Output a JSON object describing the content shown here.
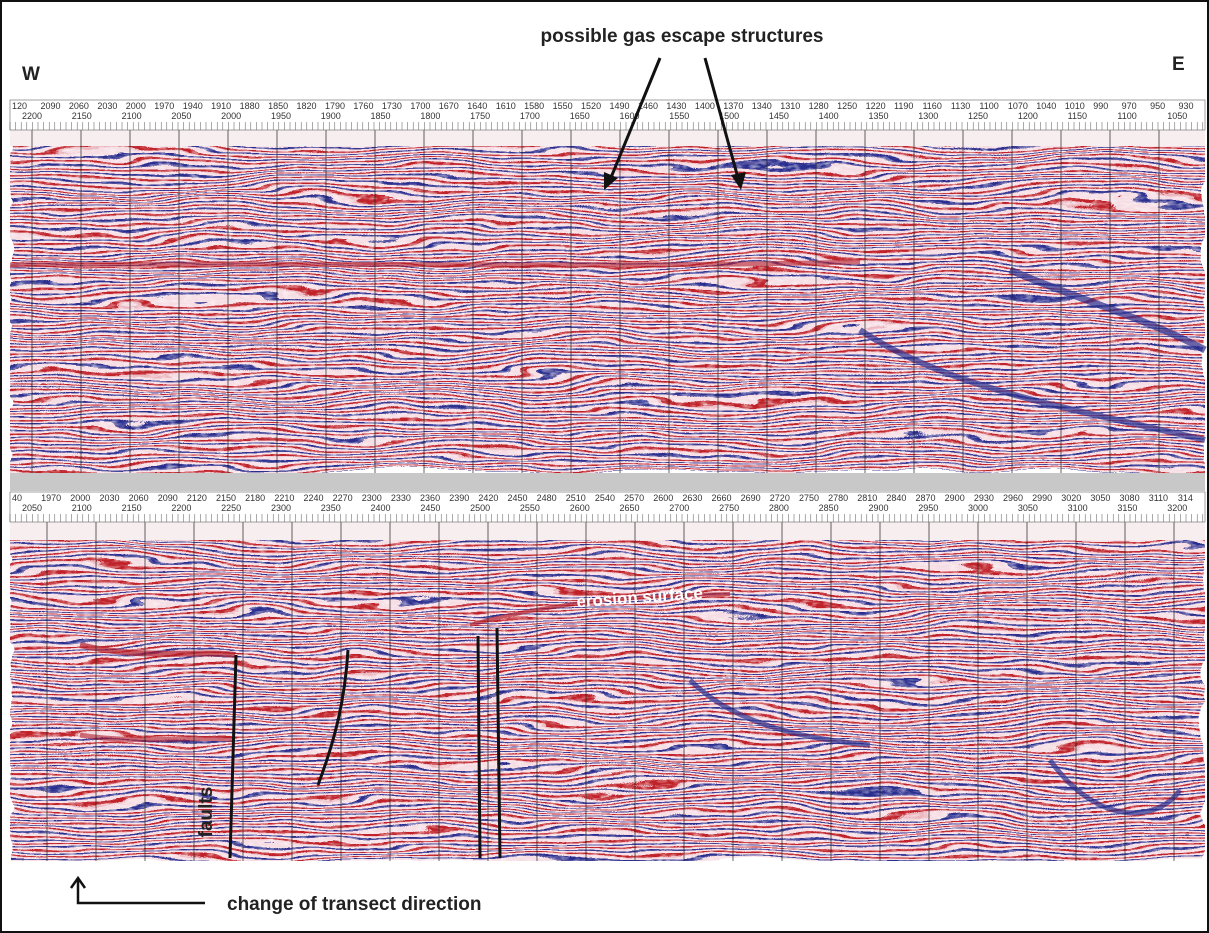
{
  "annotations": {
    "west": "W",
    "east": "E",
    "gas": "possible gas escape structures",
    "erosion": "erosion surface",
    "faults": "faults",
    "direction": "change of transect direction"
  },
  "scales": {
    "top_panel": {
      "upper": [
        "120",
        "2090",
        "2060",
        "2030",
        "2000",
        "1970",
        "1940",
        "1910",
        "1880",
        "1850",
        "1820",
        "1790",
        "1760",
        "1730",
        "1700",
        "1670",
        "1640",
        "1610",
        "1580",
        "1550",
        "1520",
        "1490",
        "1460",
        "1430",
        "1400",
        "1370",
        "1340",
        "1310",
        "1280",
        "1250",
        "1220",
        "1190",
        "1160",
        "1130",
        "1100",
        "1070",
        "1040",
        "1010",
        "990",
        "970",
        "950",
        "930"
      ],
      "lower": [
        "2200",
        "2150",
        "2100",
        "2050",
        "2000",
        "1950",
        "1900",
        "1850",
        "1800",
        "1750",
        "1700",
        "1650",
        "1600",
        "1550",
        "1500",
        "1450",
        "1400",
        "1350",
        "1300",
        "1250",
        "1200",
        "1150",
        "1100",
        "1050"
      ]
    },
    "bottom_panel": {
      "upper": [
        "40",
        "1970",
        "2000",
        "2030",
        "2060",
        "2090",
        "2120",
        "2150",
        "2180",
        "2210",
        "2240",
        "2270",
        "2300",
        "2330",
        "2360",
        "2390",
        "2420",
        "2450",
        "2480",
        "2510",
        "2540",
        "2570",
        "2600",
        "2630",
        "2660",
        "2690",
        "2720",
        "2750",
        "2780",
        "2810",
        "2840",
        "2870",
        "2900",
        "2930",
        "2960",
        "2990",
        "3020",
        "3050",
        "3080",
        "3110",
        "314"
      ],
      "lower": [
        "2050",
        "2100",
        "2150",
        "2200",
        "2250",
        "2300",
        "2350",
        "2400",
        "2450",
        "2500",
        "2550",
        "2600",
        "2650",
        "2700",
        "2750",
        "2800",
        "2850",
        "2900",
        "2950",
        "3000",
        "3050",
        "3100",
        "3150",
        "3200"
      ]
    }
  }
}
